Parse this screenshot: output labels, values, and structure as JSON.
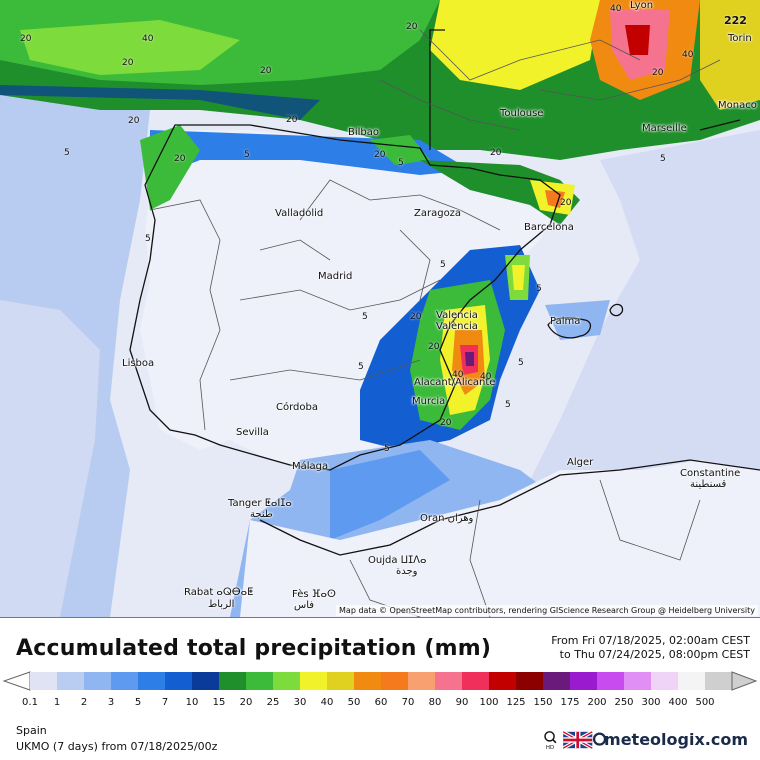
{
  "map": {
    "attribution": "Map data © OpenStreetMap contributors, rendering GIScience Research Group @ Heidelberg University",
    "cities": [
      {
        "name": "Lyon"
      },
      {
        "name": "Torin"
      },
      {
        "name": "Monaco"
      },
      {
        "name": "Toulouse"
      },
      {
        "name": "Marseille"
      },
      {
        "name": "Bilbao"
      },
      {
        "name": "Valladolid"
      },
      {
        "name": "Zaragoza"
      },
      {
        "name": "Barcelona"
      },
      {
        "name": "Madrid"
      },
      {
        "name": "Valencia"
      },
      {
        "name": "València"
      },
      {
        "name": "Palma"
      },
      {
        "name": "Lisboa"
      },
      {
        "name": "Alacant/Alicante"
      },
      {
        "name": "Murcia"
      },
      {
        "name": "Córdoba"
      },
      {
        "name": "Sevilla"
      },
      {
        "name": "Málaga"
      },
      {
        "name": "Alger"
      },
      {
        "name": "Constantine"
      },
      {
        "name": "قسنطينة"
      },
      {
        "name": "Tanger ⵟⴰⵏⵊⴰ"
      },
      {
        "name": "طنجة"
      },
      {
        "name": "Oran وهران"
      },
      {
        "name": "Oujda ⵡⵊⴷⴰ"
      },
      {
        "name": "وجدة"
      },
      {
        "name": "Rabat ⴰⵕⴱⴰⵟ"
      },
      {
        "name": "الرباط"
      },
      {
        "name": "Fès ⴼⴰⵙ"
      },
      {
        "name": "فاس"
      }
    ],
    "isolines": [
      "20",
      "40",
      "20",
      "20",
      "20",
      "20",
      "5",
      "20",
      "5",
      "5",
      "5",
      "20",
      "40",
      "5",
      "40",
      "20",
      "5",
      "20",
      "5",
      "5",
      "5",
      "20",
      "40",
      "20",
      "5",
      "5",
      "5",
      "20",
      "20",
      "40",
      "20",
      "222"
    ]
  },
  "title": "Accumulated total precipitation (mm)",
  "period": {
    "from": "From Fri 07/18/2025, 02:00am CEST",
    "to": "to Thu 07/24/2025, 08:00pm CEST"
  },
  "legend": {
    "labels": [
      "0.1",
      "1",
      "2",
      "3",
      "5",
      "7",
      "10",
      "15",
      "20",
      "25",
      "30",
      "40",
      "50",
      "60",
      "70",
      "80",
      "90",
      "100",
      "125",
      "150",
      "175",
      "200",
      "250",
      "300",
      "400",
      "500"
    ],
    "colors": [
      "#dfe3f3",
      "#b9cdf2",
      "#8fb6f1",
      "#5e9bf0",
      "#2d7fe7",
      "#135fd1",
      "#0a3a9a",
      "#1e8f2a",
      "#3cbb3b",
      "#7edb3c",
      "#f2f22a",
      "#e0d020",
      "#f08a10",
      "#f57a1e",
      "#f8a070",
      "#f5738f",
      "#f0305a",
      "#c20000",
      "#8c0000",
      "#6a1a7a",
      "#9a1ad0",
      "#c84bf0",
      "#e08ff5",
      "#f0d4f8",
      "#f4f4f4",
      "#cfcfcf"
    ]
  },
  "footer": {
    "region": "Spain",
    "model": "UKMO (7 days) from 07/18/2025/00z",
    "brand": "meteologix.com"
  }
}
